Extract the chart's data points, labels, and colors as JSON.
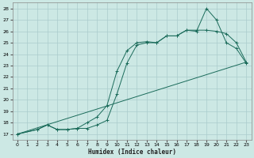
{
  "background_color": "#cce8e4",
  "grid_color": "#aacccc",
  "line_color": "#1a6b5a",
  "xlabel": "Humidex (Indice chaleur)",
  "xlim": [
    -0.5,
    23.5
  ],
  "ylim": [
    16.5,
    28.5
  ],
  "xticks": [
    0,
    1,
    2,
    3,
    4,
    5,
    6,
    7,
    8,
    9,
    10,
    11,
    12,
    13,
    14,
    15,
    16,
    17,
    18,
    19,
    20,
    21,
    22,
    23
  ],
  "yticks": [
    17,
    18,
    19,
    20,
    21,
    22,
    23,
    24,
    25,
    26,
    27,
    28
  ],
  "series": [
    {
      "x": [
        0,
        2,
        3,
        4,
        5,
        6,
        7,
        8,
        9,
        10,
        11,
        12,
        13,
        14,
        15,
        16,
        17,
        18,
        19,
        20,
        21,
        22,
        23
      ],
      "y": [
        17,
        17.4,
        17.8,
        17.4,
        17.4,
        17.5,
        17.5,
        17.8,
        18.2,
        20.5,
        23.2,
        24.8,
        25.0,
        25.0,
        25.6,
        25.6,
        26.1,
        26.0,
        28.0,
        27.0,
        25.0,
        24.5,
        23.2
      ],
      "marker": true
    },
    {
      "x": [
        0,
        2,
        3,
        4,
        5,
        6,
        7,
        8,
        9,
        10,
        11,
        12,
        13,
        14,
        15,
        16,
        17,
        18,
        19,
        20,
        21,
        22,
        23
      ],
      "y": [
        17,
        17.4,
        17.8,
        17.4,
        17.4,
        17.5,
        18.0,
        18.5,
        19.5,
        22.5,
        24.3,
        25.0,
        25.1,
        25.0,
        25.6,
        25.6,
        26.1,
        26.1,
        26.1,
        26.0,
        25.8,
        25.0,
        23.3
      ],
      "marker": true
    },
    {
      "x": [
        0,
        23
      ],
      "y": [
        17,
        23.3
      ],
      "marker": false
    }
  ]
}
